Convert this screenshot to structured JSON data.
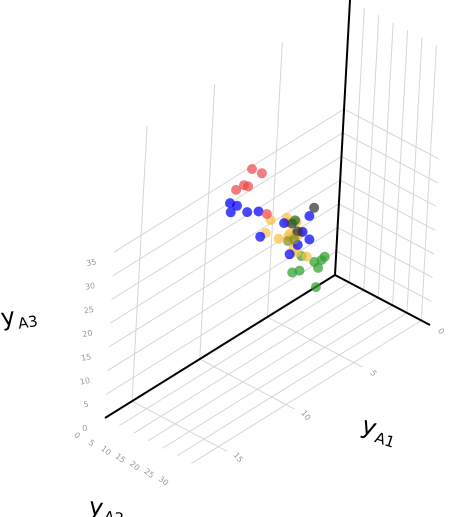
{
  "chart_data": {
    "type": "scatter",
    "title": "",
    "axes": {
      "x": {
        "label": "y",
        "sub": "A1",
        "ticks": [
          0,
          5,
          10,
          15,
          20,
          25,
          30
        ]
      },
      "y": {
        "label": "y",
        "sub": "A2",
        "ticks": [
          0,
          5,
          10,
          15
        ]
      },
      "z": {
        "label": "y",
        "sub": "A3",
        "ticks": [
          0,
          5,
          10,
          15,
          20,
          25,
          30,
          35
        ]
      }
    },
    "grid": true,
    "series": [
      {
        "color": "#2e9e2e",
        "points": [
          [
            3,
            2,
            6
          ],
          [
            4,
            2,
            8
          ],
          [
            5,
            2,
            9
          ],
          [
            6,
            3,
            10
          ],
          [
            6,
            4,
            13
          ],
          [
            7,
            3,
            5
          ],
          [
            10,
            5,
            13
          ],
          [
            12,
            6,
            15
          ],
          [
            8,
            5,
            20
          ]
        ]
      },
      {
        "color": "#f5c04a",
        "points": [
          [
            10,
            6,
            22
          ],
          [
            12,
            6,
            20
          ],
          [
            14,
            6,
            24
          ],
          [
            15,
            7,
            26
          ],
          [
            17,
            7,
            29
          ],
          [
            18,
            8,
            32
          ],
          [
            17,
            9,
            33
          ],
          [
            18,
            7,
            27
          ],
          [
            20,
            9,
            30
          ],
          [
            22,
            8,
            26
          ],
          [
            21,
            7,
            23
          ],
          [
            13,
            6,
            23
          ],
          [
            14,
            7,
            28
          ],
          [
            20,
            10,
            33
          ]
        ]
      },
      {
        "color": "#0000ff",
        "points": [
          [
            24,
            9,
            28
          ],
          [
            26,
            8,
            30
          ],
          [
            28,
            9,
            34
          ],
          [
            30,
            9,
            38
          ],
          [
            27,
            12,
            38
          ],
          [
            26,
            12,
            43
          ],
          [
            23,
            13,
            45
          ],
          [
            21,
            13,
            43
          ],
          [
            25,
            14,
            48
          ],
          [
            31,
            14,
            48
          ],
          [
            31,
            10,
            34
          ],
          [
            26,
            10,
            37
          ]
        ]
      },
      {
        "color": "#ee4a4a",
        "points": [
          [
            18,
            12,
            45
          ],
          [
            22,
            12,
            47
          ],
          [
            25,
            13,
            50
          ],
          [
            20,
            10,
            37
          ],
          [
            22,
            11,
            48
          ],
          [
            23,
            12,
            51
          ]
        ]
      },
      {
        "color": "#333333",
        "points": [
          [
            11,
            6,
            25
          ],
          [
            13,
            6,
            24
          ],
          [
            27,
            8,
            37
          ]
        ]
      },
      {
        "color": "#1e6e1e",
        "points": [
          [
            12,
            6,
            26
          ]
        ]
      },
      {
        "color": "#8d8f1c",
        "points": [
          [
            10,
            6,
            21
          ],
          [
            12,
            6,
            22
          ]
        ]
      }
    ]
  }
}
